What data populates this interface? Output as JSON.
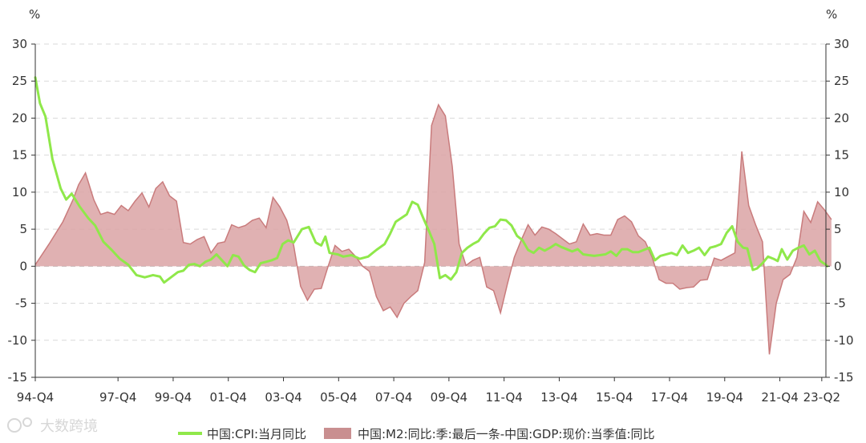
{
  "watermark": "大数跨境",
  "chart_data": {
    "type": "line",
    "left_unit": "%",
    "right_unit": "%",
    "ylim": [
      -15,
      30
    ],
    "yticks": [
      -15,
      -10,
      -5,
      0,
      5,
      10,
      15,
      20,
      25,
      30
    ],
    "grid": true,
    "legend_position": "bottom",
    "x_start": "1994-Q4",
    "x_end": "2023-Q2",
    "xtick_labels": [
      "94-Q4",
      "97-Q4",
      "99-Q4",
      "01-Q4",
      "03-Q4",
      "05-Q4",
      "07-Q4",
      "09-Q4",
      "11-Q4",
      "13-Q4",
      "15-Q4",
      "17-Q4",
      "19-Q4",
      "21-Q4",
      "23-Q2"
    ],
    "series": [
      {
        "name": "中国:CPI:当月同比",
        "type": "line",
        "color": "#8fe84a",
        "x_units": "year",
        "points": [
          [
            1994.83,
            25.5
          ],
          [
            1995.0,
            22.0
          ],
          [
            1995.2,
            20.2
          ],
          [
            1995.45,
            14.5
          ],
          [
            1995.75,
            10.5
          ],
          [
            1995.95,
            9.0
          ],
          [
            1996.15,
            9.8
          ],
          [
            1996.45,
            8.0
          ],
          [
            1996.75,
            6.5
          ],
          [
            1997.0,
            5.5
          ],
          [
            1997.3,
            3.3
          ],
          [
            1997.6,
            2.2
          ],
          [
            1997.9,
            1.0
          ],
          [
            1998.2,
            0.2
          ],
          [
            1998.5,
            -1.2
          ],
          [
            1998.8,
            -1.5
          ],
          [
            1999.1,
            -1.2
          ],
          [
            1999.35,
            -1.4
          ],
          [
            1999.5,
            -2.2
          ],
          [
            1999.75,
            -1.5
          ],
          [
            2000.0,
            -0.8
          ],
          [
            2000.2,
            -0.6
          ],
          [
            2000.4,
            0.2
          ],
          [
            2000.6,
            0.3
          ],
          [
            2000.8,
            0.0
          ],
          [
            2001.0,
            0.6
          ],
          [
            2001.2,
            0.9
          ],
          [
            2001.4,
            1.6
          ],
          [
            2001.6,
            0.8
          ],
          [
            2001.8,
            0.0
          ],
          [
            2002.0,
            1.5
          ],
          [
            2002.2,
            1.3
          ],
          [
            2002.4,
            0.1
          ],
          [
            2002.6,
            -0.5
          ],
          [
            2002.8,
            -0.8
          ],
          [
            2003.0,
            0.4
          ],
          [
            2003.2,
            0.6
          ],
          [
            2003.4,
            0.8
          ],
          [
            2003.6,
            1.1
          ],
          [
            2003.8,
            3.0
          ],
          [
            2004.0,
            3.5
          ],
          [
            2004.2,
            3.2
          ],
          [
            2004.5,
            5.0
          ],
          [
            2004.75,
            5.3
          ],
          [
            2005.0,
            3.2
          ],
          [
            2005.2,
            2.8
          ],
          [
            2005.35,
            4.0
          ],
          [
            2005.5,
            1.8
          ],
          [
            2005.8,
            1.6
          ],
          [
            2006.0,
            1.3
          ],
          [
            2006.3,
            1.5
          ],
          [
            2006.6,
            1.0
          ],
          [
            2006.9,
            1.3
          ],
          [
            2007.2,
            2.2
          ],
          [
            2007.5,
            3.0
          ],
          [
            2007.7,
            4.4
          ],
          [
            2007.9,
            6.0
          ],
          [
            2008.1,
            6.5
          ],
          [
            2008.3,
            7.0
          ],
          [
            2008.5,
            8.7
          ],
          [
            2008.7,
            8.3
          ],
          [
            2008.9,
            6.5
          ],
          [
            2009.1,
            4.8
          ],
          [
            2009.3,
            3.0
          ],
          [
            2009.5,
            -1.6
          ],
          [
            2009.7,
            -1.2
          ],
          [
            2009.9,
            -1.8
          ],
          [
            2010.1,
            -0.8
          ],
          [
            2010.3,
            1.8
          ],
          [
            2010.5,
            2.5
          ],
          [
            2010.7,
            3.0
          ],
          [
            2010.9,
            3.4
          ],
          [
            2011.1,
            4.4
          ],
          [
            2011.3,
            5.2
          ],
          [
            2011.5,
            5.4
          ],
          [
            2011.7,
            6.3
          ],
          [
            2011.9,
            6.2
          ],
          [
            2012.1,
            5.5
          ],
          [
            2012.3,
            4.1
          ],
          [
            2012.5,
            3.5
          ],
          [
            2012.7,
            2.2
          ],
          [
            2012.9,
            1.8
          ],
          [
            2013.1,
            2.5
          ],
          [
            2013.3,
            2.1
          ],
          [
            2013.5,
            2.5
          ],
          [
            2013.7,
            3.0
          ],
          [
            2013.9,
            2.6
          ],
          [
            2014.1,
            2.3
          ],
          [
            2014.3,
            2.0
          ],
          [
            2014.5,
            2.3
          ],
          [
            2014.7,
            1.6
          ],
          [
            2014.9,
            1.5
          ],
          [
            2015.1,
            1.4
          ],
          [
            2015.3,
            1.5
          ],
          [
            2015.5,
            1.6
          ],
          [
            2015.7,
            2.0
          ],
          [
            2015.9,
            1.4
          ],
          [
            2016.1,
            2.3
          ],
          [
            2016.3,
            2.3
          ],
          [
            2016.5,
            1.9
          ],
          [
            2016.7,
            1.9
          ],
          [
            2016.9,
            2.2
          ],
          [
            2017.1,
            2.5
          ],
          [
            2017.3,
            0.8
          ],
          [
            2017.5,
            1.4
          ],
          [
            2017.7,
            1.6
          ],
          [
            2017.9,
            1.8
          ],
          [
            2018.1,
            1.5
          ],
          [
            2018.3,
            2.8
          ],
          [
            2018.5,
            1.8
          ],
          [
            2018.7,
            2.1
          ],
          [
            2018.9,
            2.5
          ],
          [
            2019.1,
            1.5
          ],
          [
            2019.3,
            2.5
          ],
          [
            2019.5,
            2.7
          ],
          [
            2019.7,
            3.0
          ],
          [
            2019.9,
            4.5
          ],
          [
            2020.1,
            5.4
          ],
          [
            2020.3,
            3.3
          ],
          [
            2020.5,
            2.5
          ],
          [
            2020.65,
            2.4
          ],
          [
            2020.85,
            -0.5
          ],
          [
            2021.0,
            -0.3
          ],
          [
            2021.2,
            0.4
          ],
          [
            2021.4,
            1.3
          ],
          [
            2021.6,
            1.0
          ],
          [
            2021.75,
            0.7
          ],
          [
            2021.9,
            2.3
          ],
          [
            2022.1,
            0.9
          ],
          [
            2022.3,
            2.1
          ],
          [
            2022.5,
            2.5
          ],
          [
            2022.7,
            2.8
          ],
          [
            2022.9,
            1.6
          ],
          [
            2023.1,
            2.1
          ],
          [
            2023.3,
            0.7
          ],
          [
            2023.5,
            0.2
          ],
          [
            2023.55,
            0.0
          ]
        ]
      },
      {
        "name": "中国:M2:同比:季:最后一条-中国:GDP:现价:当季值:同比",
        "type": "area",
        "color": "#c97b7c",
        "fill": "#dba3a4",
        "x_units": "year",
        "points": [
          [
            1994.83,
            0.2
          ],
          [
            1995.33,
            3.0
          ],
          [
            1995.83,
            6.0
          ],
          [
            1996.2,
            9.0
          ],
          [
            1996.4,
            11.0
          ],
          [
            1996.65,
            12.6
          ],
          [
            1996.95,
            9.0
          ],
          [
            1997.2,
            7.0
          ],
          [
            1997.45,
            7.3
          ],
          [
            1997.7,
            7.0
          ],
          [
            1997.95,
            8.2
          ],
          [
            1998.2,
            7.5
          ],
          [
            1998.45,
            8.8
          ],
          [
            1998.7,
            9.9
          ],
          [
            1998.95,
            8.0
          ],
          [
            1999.2,
            10.5
          ],
          [
            1999.45,
            11.4
          ],
          [
            1999.7,
            9.5
          ],
          [
            1999.95,
            8.8
          ],
          [
            2000.2,
            3.2
          ],
          [
            2000.45,
            3.0
          ],
          [
            2000.7,
            3.6
          ],
          [
            2000.95,
            4.0
          ],
          [
            2001.2,
            1.8
          ],
          [
            2001.45,
            3.1
          ],
          [
            2001.7,
            3.3
          ],
          [
            2001.95,
            5.6
          ],
          [
            2002.2,
            5.2
          ],
          [
            2002.45,
            5.5
          ],
          [
            2002.7,
            6.2
          ],
          [
            2002.95,
            6.5
          ],
          [
            2003.2,
            5.2
          ],
          [
            2003.45,
            9.3
          ],
          [
            2003.7,
            8.0
          ],
          [
            2003.95,
            6.2
          ],
          [
            2004.2,
            2.8
          ],
          [
            2004.45,
            -2.7
          ],
          [
            2004.7,
            -4.6
          ],
          [
            2004.95,
            -3.1
          ],
          [
            2005.2,
            -3.0
          ],
          [
            2005.45,
            0.0
          ],
          [
            2005.7,
            2.8
          ],
          [
            2005.95,
            2.0
          ],
          [
            2006.2,
            2.3
          ],
          [
            2006.45,
            1.3
          ],
          [
            2006.7,
            0.0
          ],
          [
            2006.95,
            -0.7
          ],
          [
            2007.2,
            -4.1
          ],
          [
            2007.45,
            -6.0
          ],
          [
            2007.7,
            -5.5
          ],
          [
            2007.95,
            -6.9
          ],
          [
            2008.2,
            -5.0
          ],
          [
            2008.45,
            -4.1
          ],
          [
            2008.7,
            -3.3
          ],
          [
            2008.95,
            0.5
          ],
          [
            2009.2,
            19.0
          ],
          [
            2009.45,
            21.8
          ],
          [
            2009.7,
            20.3
          ],
          [
            2009.95,
            13.5
          ],
          [
            2010.2,
            3.0
          ],
          [
            2010.45,
            0.1
          ],
          [
            2010.7,
            0.8
          ],
          [
            2010.95,
            1.2
          ],
          [
            2011.2,
            -2.8
          ],
          [
            2011.45,
            -3.3
          ],
          [
            2011.7,
            -6.3
          ],
          [
            2011.95,
            -2.4
          ],
          [
            2012.2,
            1.2
          ],
          [
            2012.45,
            3.5
          ],
          [
            2012.7,
            5.6
          ],
          [
            2012.95,
            4.2
          ],
          [
            2013.2,
            5.3
          ],
          [
            2013.45,
            5.0
          ],
          [
            2013.7,
            4.4
          ],
          [
            2013.95,
            3.7
          ],
          [
            2014.2,
            3.0
          ],
          [
            2014.45,
            3.3
          ],
          [
            2014.7,
            5.7
          ],
          [
            2014.95,
            4.2
          ],
          [
            2015.2,
            4.4
          ],
          [
            2015.45,
            4.2
          ],
          [
            2015.7,
            4.2
          ],
          [
            2015.95,
            6.3
          ],
          [
            2016.2,
            6.8
          ],
          [
            2016.45,
            6.0
          ],
          [
            2016.7,
            4.1
          ],
          [
            2016.95,
            3.3
          ],
          [
            2017.2,
            1.2
          ],
          [
            2017.45,
            -1.8
          ],
          [
            2017.7,
            -2.3
          ],
          [
            2017.95,
            -2.3
          ],
          [
            2018.2,
            -3.1
          ],
          [
            2018.45,
            -2.9
          ],
          [
            2018.7,
            -2.8
          ],
          [
            2018.95,
            -1.9
          ],
          [
            2019.2,
            -1.8
          ],
          [
            2019.45,
            1.1
          ],
          [
            2019.7,
            0.8
          ],
          [
            2019.95,
            1.3
          ],
          [
            2020.2,
            1.8
          ],
          [
            2020.45,
            15.5
          ],
          [
            2020.7,
            8.2
          ],
          [
            2020.95,
            5.6
          ],
          [
            2021.2,
            3.3
          ],
          [
            2021.45,
            -11.9
          ],
          [
            2021.7,
            -5.0
          ],
          [
            2021.95,
            -1.8
          ],
          [
            2022.2,
            -1.1
          ],
          [
            2022.45,
            1.2
          ],
          [
            2022.7,
            7.4
          ],
          [
            2022.95,
            5.9
          ],
          [
            2023.2,
            8.7
          ],
          [
            2023.45,
            7.6
          ],
          [
            2023.7,
            6.3
          ]
        ]
      }
    ]
  }
}
